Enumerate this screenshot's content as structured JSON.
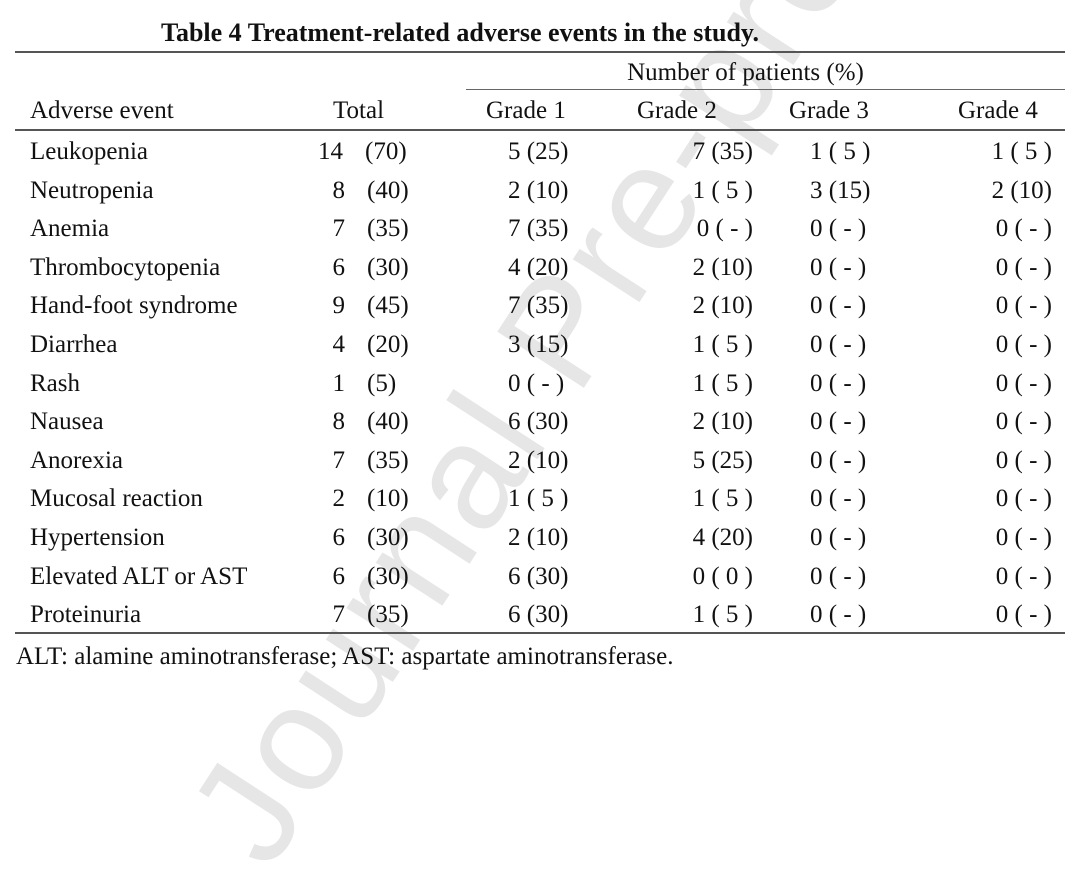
{
  "watermark": "Journal Pre-proof",
  "title": "Table 4    Treatment-related adverse events in the study.",
  "header": {
    "group": "Number of patients (%)",
    "adverse_event": "Adverse event",
    "total": "Total",
    "grades": [
      "Grade 1",
      "Grade 2",
      "Grade 3",
      "Grade 4"
    ]
  },
  "rows": [
    {
      "event": "Leukopenia",
      "total_n": "14",
      "total_pct": "(70)",
      "g1": "5 (25)",
      "g2": "7 (35)",
      "g3": "1 ( 5 )",
      "g4": "1 ( 5 )"
    },
    {
      "event": "Neutropenia",
      "total_n": "8",
      "total_pct": "(40)",
      "g1": "2 (10)",
      "g2": "1 ( 5 )",
      "g3": "3 (15)",
      "g4": "2 (10)"
    },
    {
      "event": "Anemia",
      "total_n": "7",
      "total_pct": "(35)",
      "g1": "7 (35)",
      "g2": "0 ( - )",
      "g3": "0 ( - )",
      "g4": "0 ( - )"
    },
    {
      "event": "Thrombocytopenia",
      "total_n": "6",
      "total_pct": "(30)",
      "g1": "4 (20)",
      "g2": "2 (10)",
      "g3": "0 ( - )",
      "g4": "0 ( - )"
    },
    {
      "event": "Hand-foot syndrome",
      "total_n": "9",
      "total_pct": "(45)",
      "g1": "7 (35)",
      "g2": "2 (10)",
      "g3": "0 ( - )",
      "g4": "0 ( - )"
    },
    {
      "event": "Diarrhea",
      "total_n": "4",
      "total_pct": "(20)",
      "g1": "3 (15)",
      "g2": "1 ( 5 )",
      "g3": "0 ( - )",
      "g4": "0 ( - )"
    },
    {
      "event": "Rash",
      "total_n": "1",
      "total_pct": "(5)",
      "g1": "0 ( - )",
      "g2": "1 ( 5 )",
      "g3": "0 ( - )",
      "g4": "0 ( - )"
    },
    {
      "event": "Nausea",
      "total_n": "8",
      "total_pct": "(40)",
      "g1": "6 (30)",
      "g2": "2 (10)",
      "g3": "0 ( - )",
      "g4": "0 ( - )"
    },
    {
      "event": "Anorexia",
      "total_n": "7",
      "total_pct": "(35)",
      "g1": "2 (10)",
      "g2": "5 (25)",
      "g3": "0 ( - )",
      "g4": "0 ( - )"
    },
    {
      "event": "Mucosal reaction",
      "total_n": "2",
      "total_pct": "(10)",
      "g1": "1 ( 5 )",
      "g2": "1 ( 5 )",
      "g3": "0 ( - )",
      "g4": "0 ( - )"
    },
    {
      "event": "Hypertension",
      "total_n": "6",
      "total_pct": "(30)",
      "g1": "2 (10)",
      "g2": "4 (20)",
      "g3": "0 ( - )",
      "g4": "0 ( - )"
    },
    {
      "event": "Elevated ALT or AST",
      "total_n": "6",
      "total_pct": "(30)",
      "g1": "6 (30)",
      "g2": "0 ( 0 )",
      "g3": "0 ( - )",
      "g4": "0 ( - )"
    },
    {
      "event": "Proteinuria",
      "total_n": "7",
      "total_pct": "(35)",
      "g1": "6 (30)",
      "g2": "1 ( 5 )",
      "g3": "0 ( - )",
      "g4": "0 ( - )"
    }
  ],
  "footnote": "ALT: alamine aminotransferase; AST: aspartate aminotransferase."
}
